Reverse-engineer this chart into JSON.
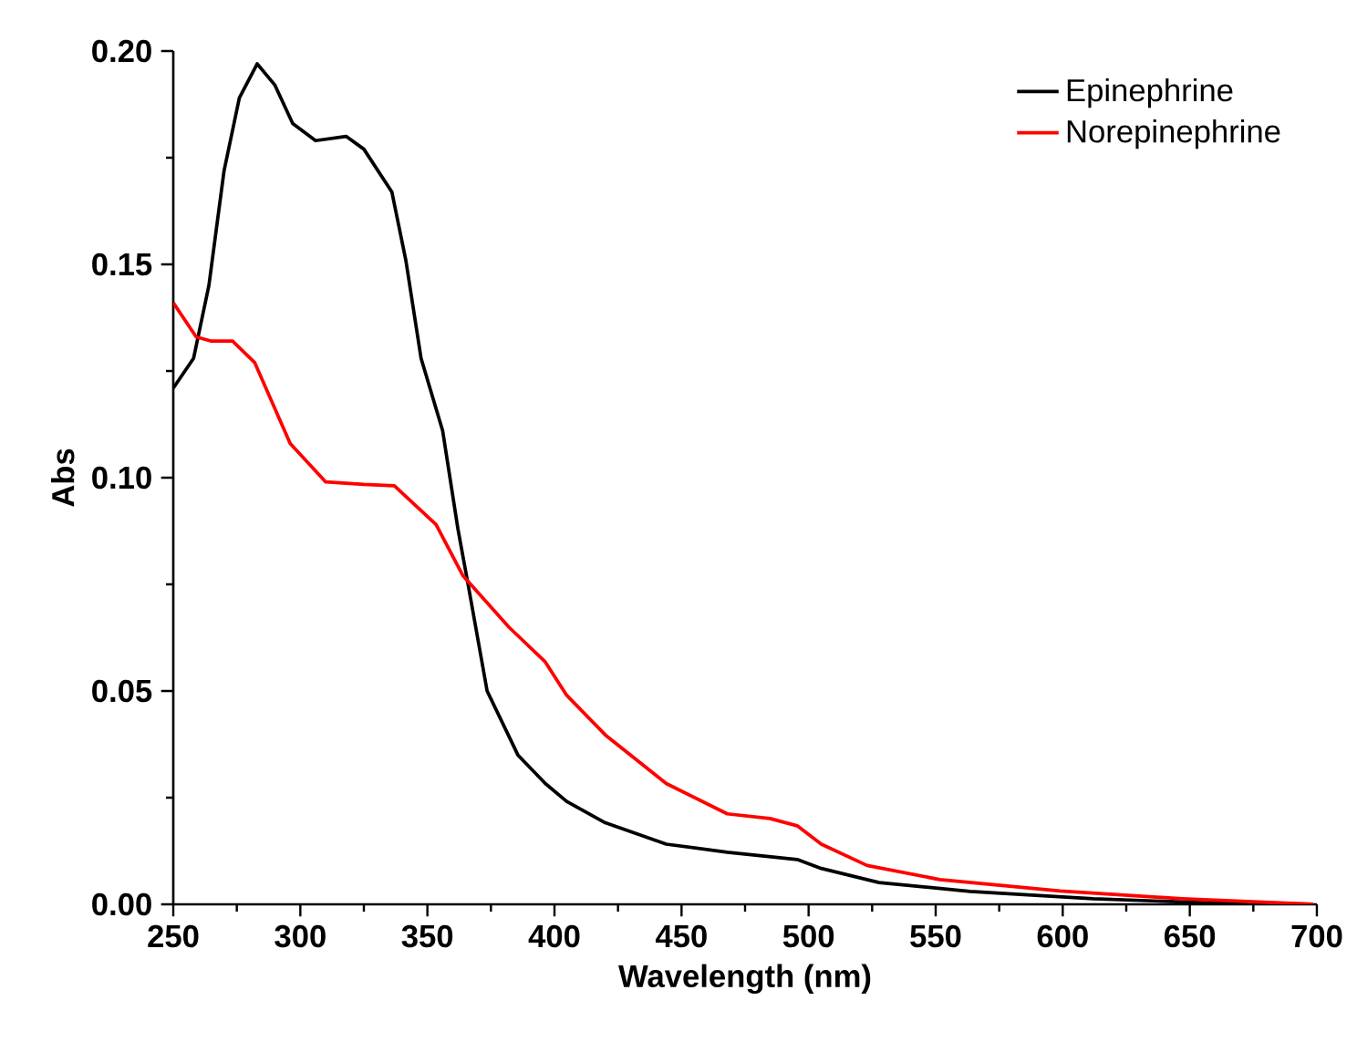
{
  "chart_data": {
    "type": "line",
    "xlabel": "Wavelength (nm)",
    "ylabel": "Abs",
    "xlim": [
      250,
      700
    ],
    "ylim": [
      0,
      0.2
    ],
    "xticks": [
      250,
      300,
      350,
      400,
      450,
      500,
      550,
      600,
      650,
      700
    ],
    "yticks": [
      {
        "value": 0,
        "label": "0.00"
      },
      {
        "value": 0.05,
        "label": "0.05"
      },
      {
        "value": 0.1,
        "label": "0.10"
      },
      {
        "value": 0.15,
        "label": "0.15"
      },
      {
        "value": 0.2,
        "label": "0.20"
      }
    ],
    "grid": false,
    "legend": "top right",
    "marker": "none",
    "line_style": "solid",
    "series": [
      {
        "name": "Epinephrine",
        "color": "#000000",
        "x": [
          250,
          258,
          264,
          270,
          276,
          283,
          290,
          297,
          306,
          318,
          325,
          336,
          341.5,
          347.5,
          356,
          362,
          366,
          373.5,
          385.6,
          396.4,
          404.8,
          420,
          444,
          468,
          495.5,
          505,
          527.7,
          563.6,
          612,
          659,
          698.5
        ],
        "values": [
          0.121,
          0.128,
          0.145,
          0.172,
          0.189,
          0.197,
          0.192,
          0.183,
          0.179,
          0.18,
          0.177,
          0.167,
          0.151,
          0.128,
          0.111,
          0.088,
          0.075,
          0.05,
          0.035,
          0.0283,
          0.0241,
          0.0191,
          0.0141,
          0.0122,
          0.0105,
          0.0084,
          0.0051,
          0.003,
          0.0013,
          0.0003,
          0
        ]
      },
      {
        "name": "Norepinephrine",
        "color": "#ff0000",
        "x": [
          250,
          259,
          265,
          273.4,
          282,
          296,
          310,
          325,
          337,
          353.4,
          364,
          382,
          396.4,
          404.8,
          420,
          444,
          468,
          484.8,
          495.5,
          505,
          523,
          551.6,
          599,
          647,
          698.5
        ],
        "values": [
          0.141,
          0.133,
          0.132,
          0.132,
          0.127,
          0.108,
          0.099,
          0.0984,
          0.0981,
          0.089,
          0.077,
          0.065,
          0.0568,
          0.049,
          0.0397,
          0.0283,
          0.0212,
          0.0201,
          0.0184,
          0.0141,
          0.0091,
          0.0058,
          0.0031,
          0.0013,
          0
        ]
      }
    ]
  }
}
